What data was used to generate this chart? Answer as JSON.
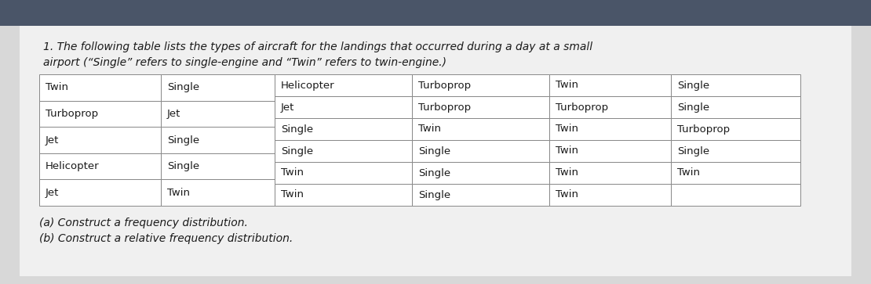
{
  "title_line1": "1. The following table lists the types of aircraft for the landings that occurred during a day at a small",
  "title_line2": "airport (“Single” refers to single-engine and “Twin” refers to twin-engine.)",
  "col12_data": [
    [
      "Twin",
      "Single"
    ],
    [
      "Turboprop",
      "Jet"
    ],
    [
      "Jet",
      "Single"
    ],
    [
      "Helicopter",
      "Single"
    ],
    [
      "Jet",
      "Twin"
    ]
  ],
  "col3456_data": [
    [
      "Helicopter",
      "Turboprop",
      "Twin",
      "Single"
    ],
    [
      "Jet",
      "Turboprop",
      "Turboprop",
      "Single"
    ],
    [
      "Single",
      "Twin",
      "Twin",
      "Turboprop"
    ],
    [
      "Single",
      "Single",
      "Twin",
      "Single"
    ],
    [
      "Twin",
      "Single",
      "Twin",
      "Twin"
    ]
  ],
  "footer_line1": "(a) Construct a frequency distribution.",
  "footer_line2": "(b) Construct a relative frequency distribution.",
  "top_bar_color": "#4a5568",
  "paper_color": "#d8d8d8",
  "white_area_color": "#e8e8e8",
  "table_bg": "#ffffff",
  "border_color": "#888888",
  "text_color": "#1a1a1a",
  "title_fontsize": 10,
  "cell_fontsize": 9.5,
  "footer_fontsize": 10
}
